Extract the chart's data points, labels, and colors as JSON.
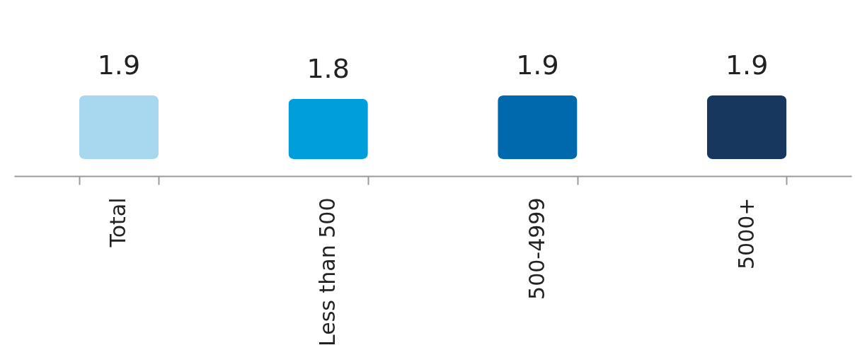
{
  "chart_data": {
    "type": "bar",
    "categories": [
      "Total",
      "Less than 500",
      "500-4999",
      "5000+"
    ],
    "values": [
      1.9,
      1.8,
      1.9,
      1.9
    ],
    "colors": [
      "#a8d8f0",
      "#009fdb",
      "#0068ad",
      "#17375e"
    ],
    "data_labels": true,
    "grid": false,
    "legend": false
  }
}
